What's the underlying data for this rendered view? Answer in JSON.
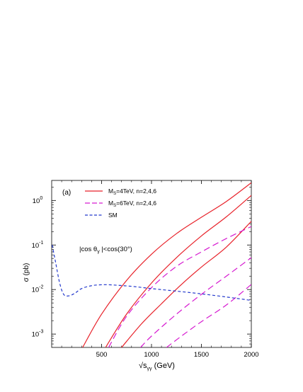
{
  "chart_data": {
    "type": "line",
    "panel_label": "(a)",
    "annotation": "|cos θγ|<cos(30°)",
    "xlabel": "√s",
    "xlabel_sub": "γγ",
    "xlabel_unit": "(GeV)",
    "ylabel": "σ (pb)",
    "xlim": [
      0,
      2000
    ],
    "ylim_log10": [
      -3.3,
      0.45
    ],
    "y_scale": "log",
    "x_ticks": [
      500,
      1000,
      1500,
      2000
    ],
    "x_tick_labels": [
      "500",
      "1000",
      "1500",
      "2000"
    ],
    "y_ticks": [
      -3,
      -2,
      -1,
      0
    ],
    "y_tick_labels": [
      {
        "base": "10",
        "exp": "-3"
      },
      {
        "base": "10",
        "exp": "-2"
      },
      {
        "base": "10",
        "exp": "-1"
      },
      {
        "base": "10",
        "exp": "0"
      }
    ],
    "legend_placement": "top-left",
    "legend": [
      {
        "label": "M",
        "sub": "S",
        "rest": "=4TeV, n=2,4,6",
        "color": "#e8222a",
        "dash": "solid"
      },
      {
        "label": "M",
        "sub": "S",
        "rest": "=6TeV, n=2,4,6",
        "color": "#d61ad0",
        "dash": "long-dash"
      },
      {
        "label": "SM",
        "sub": "",
        "rest": "",
        "color": "#2238cc",
        "dash": "short-dash"
      }
    ],
    "series": [
      {
        "group": "MS=4TeV",
        "n": 2,
        "color": "#e8222a",
        "dash": "solid",
        "points": [
          [
            310,
            0.0005
          ],
          [
            500,
            0.0028
          ],
          [
            750,
            0.016
          ],
          [
            1000,
            0.062
          ],
          [
            1250,
            0.18
          ],
          [
            1500,
            0.42
          ],
          [
            1750,
            0.95
          ],
          [
            2000,
            2.5
          ]
        ]
      },
      {
        "group": "MS=4TeV",
        "n": 4,
        "color": "#e8222a",
        "dash": "solid",
        "points": [
          [
            540,
            0.0005
          ],
          [
            750,
            0.0028
          ],
          [
            1000,
            0.014
          ],
          [
            1250,
            0.052
          ],
          [
            1500,
            0.16
          ],
          [
            1750,
            0.43
          ],
          [
            2000,
            1.3
          ]
        ]
      },
      {
        "group": "MS=4TeV",
        "n": 6,
        "color": "#e8222a",
        "dash": "solid",
        "points": [
          [
            700,
            0.0005
          ],
          [
            900,
            0.0017
          ],
          [
            1100,
            0.0048
          ],
          [
            1300,
            0.013
          ],
          [
            1500,
            0.032
          ],
          [
            1750,
            0.09
          ],
          [
            2000,
            0.34
          ]
        ]
      },
      {
        "group": "MS=6TeV",
        "n": 2,
        "color": "#d61ad0",
        "dash": "long-dash",
        "points": [
          [
            570,
            0.0005
          ],
          [
            750,
            0.0025
          ],
          [
            1000,
            0.011
          ],
          [
            1250,
            0.033
          ],
          [
            1500,
            0.07
          ],
          [
            1750,
            0.14
          ],
          [
            2000,
            0.26
          ]
        ]
      },
      {
        "group": "MS=6TeV",
        "n": 4,
        "color": "#d61ad0",
        "dash": "long-dash",
        "points": [
          [
            890,
            0.0005
          ],
          [
            1000,
            0.0009
          ],
          [
            1250,
            0.0028
          ],
          [
            1500,
            0.0078
          ],
          [
            1750,
            0.02
          ],
          [
            2000,
            0.052
          ]
        ]
      },
      {
        "group": "MS=6TeV",
        "n": 6,
        "color": "#d61ad0",
        "dash": "long-dash",
        "points": [
          [
            1150,
            0.0005
          ],
          [
            1300,
            0.0009
          ],
          [
            1500,
            0.0019
          ],
          [
            1750,
            0.0045
          ],
          [
            2000,
            0.013
          ]
        ]
      },
      {
        "group": "SM",
        "n": null,
        "color": "#2238cc",
        "dash": "short-dash",
        "points": [
          [
            5,
            0.1
          ],
          [
            40,
            0.04
          ],
          [
            80,
            0.014
          ],
          [
            120,
            0.0078
          ],
          [
            170,
            0.0072
          ],
          [
            230,
            0.0082
          ],
          [
            300,
            0.0105
          ],
          [
            400,
            0.0122
          ],
          [
            500,
            0.0128
          ],
          [
            600,
            0.0127
          ],
          [
            800,
            0.0118
          ],
          [
            1000,
            0.0105
          ],
          [
            1250,
            0.0092
          ],
          [
            1500,
            0.008
          ],
          [
            1750,
            0.0068
          ],
          [
            2000,
            0.0057
          ]
        ]
      }
    ]
  }
}
